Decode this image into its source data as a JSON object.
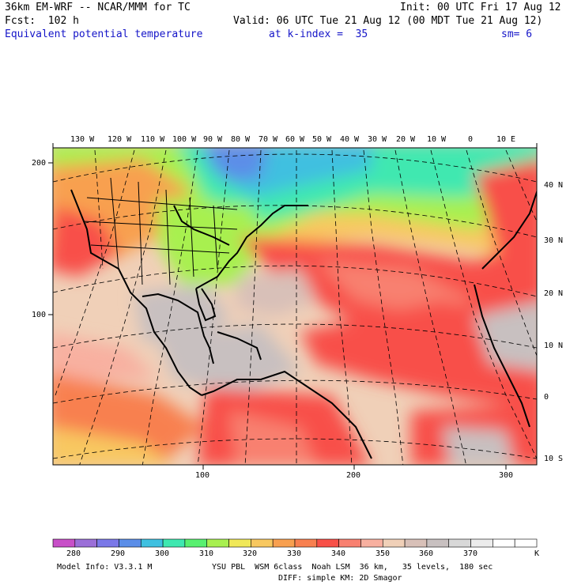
{
  "header": {
    "model": "36km EM-WRF -- NCAR/MMM for TC",
    "init": "Init: 00 UTC Fri 17 Aug 12",
    "forecast": "Fcst:  102 h",
    "valid": "Valid: 06 UTC Tue 21 Aug 12 (00 MDT Tue 21 Aug 12)",
    "field": "Equivalent potential temperature",
    "level": "at k-index =  35",
    "smoothing": "sm= 6"
  },
  "map": {
    "lon_labels": [
      "130 W",
      "120 W",
      "110 W",
      "100 W",
      "90 W",
      "80 W",
      "70 W",
      "60 W",
      "50 W",
      "40 W",
      "30 W",
      "20 W",
      "10 W",
      "0",
      "10 E"
    ],
    "lat_labels": [
      "40 N",
      "30 N",
      "20 N",
      "10 N",
      "0",
      "10 S"
    ],
    "grid_x_ticks": [
      "100",
      "200",
      "300"
    ],
    "grid_y_ticks": [
      "200",
      "100"
    ]
  },
  "colorbar": {
    "levels": [
      "280",
      "290",
      "300",
      "310",
      "320",
      "330",
      "340",
      "350",
      "360",
      "370",
      "K"
    ],
    "colors": [
      "#c84fc8",
      "#9b6fd8",
      "#7a78e8",
      "#5b8ee8",
      "#3fc0e0",
      "#3fe8b0",
      "#58f070",
      "#a8f050",
      "#f0e858",
      "#f8c860",
      "#f8a050",
      "#f88050",
      "#f85048",
      "#f88070",
      "#f8b0a0",
      "#f0d0b8",
      "#d8c0b8",
      "#c8c0c0",
      "#d8d8d8",
      "#ececec",
      "#ffffff",
      "#ffffff"
    ]
  },
  "footer": {
    "model_info": "Model Info: V3.3.1 M",
    "physics_line1": "YSU PBL  WSM 6class  Noah LSM  36 km,   35 levels,  180 sec",
    "physics_line2": "DIFF: simple KM: 2D Smagor"
  }
}
